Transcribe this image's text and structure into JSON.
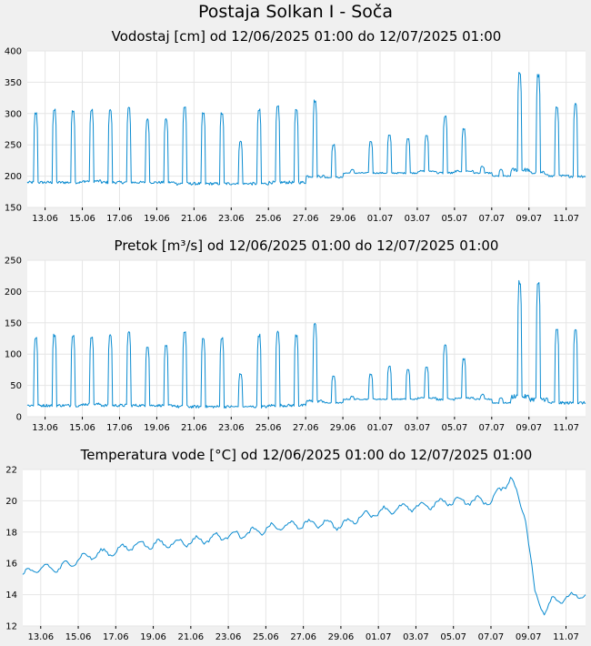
{
  "page": {
    "title": "Postaja Solkan I - Soča"
  },
  "colors": {
    "series": "#0a8bd0",
    "background": "#f0f0f0",
    "plot_background": "#ffffff",
    "grid": "#e6e6e6"
  },
  "chart_data": [
    {
      "id": "vodostaj",
      "type": "line",
      "title": "Vodostaj [cm] od 12/06/2025 01:00 do 12/07/2025 01:00",
      "x_start": "12/06/2025 01:00",
      "x_end": "12/07/2025 01:00",
      "xticks": [
        "13.06",
        "15.06",
        "17.06",
        "19.06",
        "21.06",
        "23.06",
        "25.06",
        "27.06",
        "29.06",
        "01.07",
        "03.07",
        "05.07",
        "07.07",
        "09.07",
        "11.07"
      ],
      "ylim": [
        150,
        400
      ],
      "yticks": [
        150,
        200,
        250,
        300,
        350,
        400
      ],
      "grid": true,
      "daily": [
        {
          "base": 190,
          "peak": 300
        },
        {
          "base": 190,
          "peak": 305
        },
        {
          "base": 190,
          "peak": 305
        },
        {
          "base": 192,
          "peak": 305
        },
        {
          "base": 190,
          "peak": 305
        },
        {
          "base": 190,
          "peak": 308
        },
        {
          "base": 190,
          "peak": 290
        },
        {
          "base": 190,
          "peak": 290
        },
        {
          "base": 188,
          "peak": 310
        },
        {
          "base": 188,
          "peak": 300
        },
        {
          "base": 188,
          "peak": 300
        },
        {
          "base": 188,
          "peak": 255
        },
        {
          "base": 188,
          "peak": 305
        },
        {
          "base": 190,
          "peak": 310
        },
        {
          "base": 190,
          "peak": 305
        },
        {
          "base": 200,
          "peak": 320
        },
        {
          "base": 198,
          "peak": 250
        },
        {
          "base": 205,
          "peak": 210
        },
        {
          "base": 205,
          "peak": 255
        },
        {
          "base": 205,
          "peak": 265
        },
        {
          "base": 205,
          "peak": 260
        },
        {
          "base": 208,
          "peak": 265
        },
        {
          "base": 205,
          "peak": 295
        },
        {
          "base": 208,
          "peak": 275
        },
        {
          "base": 205,
          "peak": 215
        },
        {
          "base": 200,
          "peak": 210
        },
        {
          "base": 210,
          "peak": 365
        },
        {
          "base": 205,
          "peak": 360
        },
        {
          "base": 200,
          "peak": 310
        },
        {
          "base": 200,
          "peak": 315
        }
      ]
    },
    {
      "id": "pretok",
      "type": "line",
      "title": "Pretok [m³/s] od 12/06/2025 01:00 do 12/07/2025 01:00",
      "x_start": "12/06/2025 01:00",
      "x_end": "12/07/2025 01:00",
      "xticks": [
        "13.06",
        "15.06",
        "17.06",
        "19.06",
        "21.06",
        "23.06",
        "25.06",
        "27.06",
        "29.06",
        "01.07",
        "03.07",
        "05.07",
        "07.07",
        "09.07",
        "11.07"
      ],
      "ylim": [
        0,
        250
      ],
      "yticks": [
        0,
        50,
        100,
        150,
        200,
        250
      ],
      "grid": true,
      "daily": [
        {
          "base": 18,
          "peak": 125
        },
        {
          "base": 18,
          "peak": 130
        },
        {
          "base": 18,
          "peak": 130
        },
        {
          "base": 20,
          "peak": 128
        },
        {
          "base": 18,
          "peak": 130
        },
        {
          "base": 18,
          "peak": 135
        },
        {
          "base": 18,
          "peak": 112
        },
        {
          "base": 18,
          "peak": 112
        },
        {
          "base": 16,
          "peak": 135
        },
        {
          "base": 16,
          "peak": 125
        },
        {
          "base": 16,
          "peak": 125
        },
        {
          "base": 16,
          "peak": 68
        },
        {
          "base": 16,
          "peak": 130
        },
        {
          "base": 18,
          "peak": 135
        },
        {
          "base": 18,
          "peak": 130
        },
        {
          "base": 25,
          "peak": 148
        },
        {
          "base": 22,
          "peak": 65
        },
        {
          "base": 28,
          "peak": 32
        },
        {
          "base": 28,
          "peak": 68
        },
        {
          "base": 28,
          "peak": 80
        },
        {
          "base": 28,
          "peak": 75
        },
        {
          "base": 30,
          "peak": 80
        },
        {
          "base": 28,
          "peak": 115
        },
        {
          "base": 30,
          "peak": 92
        },
        {
          "base": 28,
          "peak": 35
        },
        {
          "base": 22,
          "peak": 30
        },
        {
          "base": 32,
          "peak": 215
        },
        {
          "base": 28,
          "peak": 212
        },
        {
          "base": 22,
          "peak": 138
        },
        {
          "base": 22,
          "peak": 140
        }
      ]
    },
    {
      "id": "temperatura",
      "type": "line",
      "title": "Temperatura vode [°C] od 12/06/2025 01:00 do 12/07/2025 01:00",
      "x_start": "12/06/2025 01:00",
      "x_end": "12/07/2025 01:00",
      "xticks": [
        "13.06",
        "15.06",
        "17.06",
        "19.06",
        "21.06",
        "23.06",
        "25.06",
        "27.06",
        "29.06",
        "01.07",
        "03.07",
        "05.07",
        "07.07",
        "09.07",
        "11.07"
      ],
      "ylim": [
        12,
        22
      ],
      "yticks": [
        12,
        14,
        16,
        18,
        20,
        22
      ],
      "grid": true,
      "x_days": [
        0,
        1,
        2,
        3,
        4,
        5,
        6,
        7,
        8,
        9,
        10,
        11,
        12,
        13,
        14,
        15,
        16,
        17,
        18,
        19,
        20,
        21,
        22,
        23,
        24,
        25,
        26,
        26.8,
        27.3,
        27.8,
        28.2,
        29,
        30
      ],
      "values": [
        15.3,
        15.7,
        15.7,
        16.3,
        16.6,
        16.8,
        17.2,
        17.2,
        17.3,
        17.4,
        17.6,
        17.8,
        17.9,
        18.2,
        18.4,
        18.5,
        18.6,
        18.4,
        19.0,
        19.3,
        19.5,
        19.6,
        19.8,
        20.0,
        20.0,
        20.0,
        21.5,
        19.0,
        14.0,
        13.0,
        13.6,
        13.8,
        14.0
      ]
    }
  ]
}
